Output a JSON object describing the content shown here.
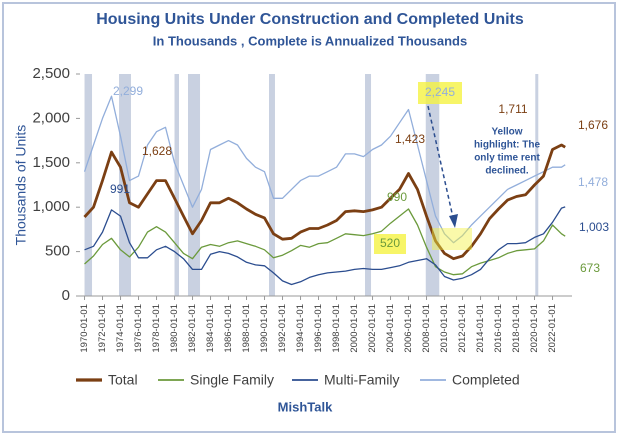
{
  "chart_data": {
    "type": "line",
    "title": "Housing Units Under Construction and Completed Units",
    "subtitle": "In Thousands , Complete is Annualized Thousands",
    "ylabel": "Thousands of Units",
    "source": "MishTalk",
    "x": [
      "1970-01-01",
      "1971-01-01",
      "1972-01-01",
      "1973-01-01",
      "1974-01-01",
      "1975-01-01",
      "1976-01-01",
      "1977-01-01",
      "1978-01-01",
      "1979-01-01",
      "1980-01-01",
      "1981-01-01",
      "1982-01-01",
      "1983-01-01",
      "1984-01-01",
      "1985-01-01",
      "1986-01-01",
      "1987-01-01",
      "1988-01-01",
      "1989-01-01",
      "1990-01-01",
      "1991-01-01",
      "1992-01-01",
      "1993-01-01",
      "1994-01-01",
      "1995-01-01",
      "1996-01-01",
      "1997-01-01",
      "1998-01-01",
      "1999-01-01",
      "2000-01-01",
      "2001-01-01",
      "2002-01-01",
      "2003-01-01",
      "2004-01-01",
      "2005-01-01",
      "2006-01-01",
      "2007-01-01",
      "2008-01-01",
      "2009-01-01",
      "2010-01-01",
      "2011-01-01",
      "2012-01-01",
      "2013-01-01",
      "2014-01-01",
      "2015-01-01",
      "2016-01-01",
      "2017-01-01",
      "2018-01-01",
      "2019-01-01",
      "2020-01-01",
      "2021-01-01",
      "2022-01-01",
      "2023-01-01",
      "2023-06-01"
    ],
    "xlim": [
      "1969-07-01",
      "2024-03-01"
    ],
    "xticks": [
      "1970-01-01",
      "1972-01-01",
      "1974-01-01",
      "1976-01-01",
      "1978-01-01",
      "1980-01-01",
      "1982-01-01",
      "1984-01-01",
      "1986-01-01",
      "1988-01-01",
      "1990-01-01",
      "1992-01-01",
      "1994-01-01",
      "1996-01-01",
      "1998-01-01",
      "2000-01-01",
      "2002-01-01",
      "2004-01-01",
      "2006-01-01",
      "2008-01-01",
      "2010-01-01",
      "2012-01-01",
      "2014-01-01",
      "2016-01-01",
      "2018-01-01",
      "2020-01-01",
      "2022-01-01"
    ],
    "ylim": [
      0,
      2500
    ],
    "yticks": [
      0,
      500,
      {
        "value": 1000,
        "label": "1,000"
      },
      {
        "value": 1500,
        "label": "1,500"
      },
      {
        "value": 2000,
        "label": "2,000"
      },
      {
        "value": 2500,
        "label": "2,500"
      }
    ],
    "shaded_periods": [
      [
        "1970-01-01",
        "1970-11-01"
      ],
      [
        "1973-11-01",
        "1975-03-01"
      ],
      [
        "1980-01-01",
        "1980-07-01"
      ],
      [
        "1981-07-01",
        "1982-11-01"
      ],
      [
        "1990-07-01",
        "1991-03-01"
      ],
      [
        "2001-03-01",
        "2001-11-01"
      ],
      [
        "2007-12-01",
        "2009-06-01"
      ],
      [
        "2020-02-01",
        "2020-04-01"
      ]
    ],
    "shade_color": "#c9d1e1",
    "series": [
      {
        "name": "Total",
        "color": "#7b3f13",
        "values": [
          890,
          1000,
          1300,
          1620,
          1450,
          1050,
          1000,
          1150,
          1300,
          1300,
          1100,
          900,
          700,
          850,
          1050,
          1050,
          1100,
          1050,
          980,
          920,
          880,
          700,
          640,
          650,
          720,
          760,
          760,
          800,
          850,
          950,
          960,
          950,
          970,
          1000,
          1100,
          1200,
          1380,
          1200,
          900,
          620,
          480,
          420,
          450,
          560,
          700,
          870,
          980,
          1080,
          1120,
          1140,
          1250,
          1350,
          1650,
          1700,
          1676
        ]
      },
      {
        "name": "Single Family",
        "color": "#6b9a3c",
        "values": [
          360,
          450,
          580,
          650,
          520,
          440,
          550,
          720,
          780,
          720,
          600,
          480,
          420,
          550,
          580,
          560,
          600,
          620,
          590,
          560,
          520,
          430,
          460,
          510,
          570,
          550,
          590,
          600,
          650,
          700,
          690,
          680,
          700,
          730,
          820,
          900,
          980,
          800,
          550,
          330,
          270,
          240,
          250,
          330,
          370,
          400,
          430,
          480,
          510,
          520,
          530,
          620,
          800,
          700,
          673
        ]
      },
      {
        "name": "Multi-Family",
        "color": "#2b4d8f",
        "values": [
          520,
          560,
          720,
          970,
          900,
          600,
          430,
          430,
          520,
          560,
          500,
          420,
          300,
          300,
          470,
          500,
          480,
          440,
          380,
          350,
          340,
          260,
          170,
          130,
          160,
          210,
          240,
          260,
          270,
          280,
          300,
          310,
          300,
          300,
          320,
          340,
          380,
          400,
          420,
          350,
          220,
          180,
          200,
          240,
          300,
          420,
          520,
          590,
          590,
          600,
          660,
          700,
          830,
          990,
          1003
        ]
      },
      {
        "name": "Completed",
        "color": "#92aedb",
        "values": [
          1400,
          1700,
          2000,
          2250,
          1800,
          1300,
          1350,
          1700,
          1850,
          1900,
          1500,
          1250,
          1000,
          1200,
          1650,
          1700,
          1750,
          1700,
          1550,
          1450,
          1400,
          1100,
          1100,
          1200,
          1300,
          1350,
          1350,
          1400,
          1450,
          1600,
          1600,
          1570,
          1650,
          1700,
          1800,
          1950,
          2100,
          1700,
          1300,
          900,
          700,
          600,
          680,
          800,
          900,
          1000,
          1100,
          1200,
          1250,
          1300,
          1350,
          1400,
          1450,
          1450,
          1478
        ]
      }
    ],
    "annotations": [
      "2,299",
      "1,628",
      "991",
      "2,245",
      "1,423",
      "990",
      "520",
      "1,711",
      "1,676",
      "1,478",
      "1,003",
      "673"
    ],
    "note_lines": [
      "Yellow",
      "highlight: The",
      "only time rent",
      "declined."
    ]
  }
}
